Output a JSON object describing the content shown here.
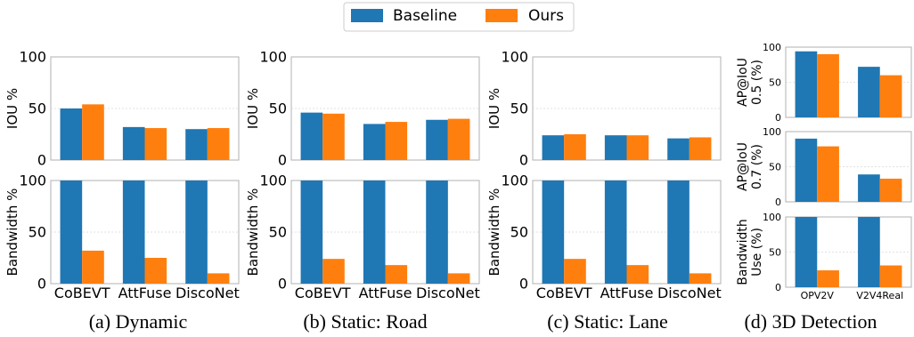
{
  "legend": {
    "placement": "top-center",
    "items": [
      {
        "label": "Baseline",
        "color": "#1f77b4"
      },
      {
        "label": "Ours",
        "color": "#ff7f0e"
      }
    ]
  },
  "captions": [
    "(a) Dynamic",
    "(b) Static: Road",
    "(c) Static: Lane",
    "(d) 3D Detection"
  ],
  "chart_data": [
    {
      "type": "bar",
      "panel": "a",
      "row": "top",
      "ylabel": "IOU %",
      "ylim": [
        0,
        100
      ],
      "yticks": [
        0,
        50,
        100
      ],
      "categories": [
        "CoBEVT",
        "AttFuse",
        "DiscoNet"
      ],
      "series": [
        {
          "name": "Baseline",
          "values": [
            50,
            32,
            30
          ]
        },
        {
          "name": "Ours",
          "values": [
            54,
            31,
            31
          ]
        }
      ]
    },
    {
      "type": "bar",
      "panel": "a",
      "row": "bottom",
      "ylabel": "Bandwidth %",
      "ylim": [
        0,
        100
      ],
      "yticks": [
        0,
        50,
        100
      ],
      "categories": [
        "CoBEVT",
        "AttFuse",
        "DiscoNet"
      ],
      "series": [
        {
          "name": "Baseline",
          "values": [
            100,
            100,
            100
          ]
        },
        {
          "name": "Ours",
          "values": [
            32,
            25,
            10
          ]
        }
      ]
    },
    {
      "type": "bar",
      "panel": "b",
      "row": "top",
      "ylabel": "IOU %",
      "ylim": [
        0,
        100
      ],
      "yticks": [
        0,
        50,
        100
      ],
      "categories": [
        "CoBEVT",
        "AttFuse",
        "DiscoNet"
      ],
      "series": [
        {
          "name": "Baseline",
          "values": [
            46,
            35,
            39
          ]
        },
        {
          "name": "Ours",
          "values": [
            45,
            37,
            40
          ]
        }
      ]
    },
    {
      "type": "bar",
      "panel": "b",
      "row": "bottom",
      "ylabel": "Bandwidth %",
      "ylim": [
        0,
        100
      ],
      "yticks": [
        0,
        50,
        100
      ],
      "categories": [
        "CoBEVT",
        "AttFuse",
        "DiscoNet"
      ],
      "series": [
        {
          "name": "Baseline",
          "values": [
            100,
            100,
            100
          ]
        },
        {
          "name": "Ours",
          "values": [
            24,
            18,
            10
          ]
        }
      ]
    },
    {
      "type": "bar",
      "panel": "c",
      "row": "top",
      "ylabel": "IOU %",
      "ylim": [
        0,
        100
      ],
      "yticks": [
        0,
        50,
        100
      ],
      "categories": [
        "CoBEVT",
        "AttFuse",
        "DiscoNet"
      ],
      "series": [
        {
          "name": "Baseline",
          "values": [
            24,
            24,
            21
          ]
        },
        {
          "name": "Ours",
          "values": [
            25,
            24,
            22
          ]
        }
      ]
    },
    {
      "type": "bar",
      "panel": "c",
      "row": "bottom",
      "ylabel": "Bandwidth %",
      "ylim": [
        0,
        100
      ],
      "yticks": [
        0,
        50,
        100
      ],
      "categories": [
        "CoBEVT",
        "AttFuse",
        "DiscoNet"
      ],
      "series": [
        {
          "name": "Baseline",
          "values": [
            100,
            100,
            100
          ]
        },
        {
          "name": "Ours",
          "values": [
            24,
            18,
            10
          ]
        }
      ]
    },
    {
      "type": "bar",
      "panel": "d",
      "row": "top",
      "ylabel": [
        "AP@IoU",
        "0.5 (%)"
      ],
      "ylim": [
        0,
        100
      ],
      "yticks": [
        0,
        50,
        100
      ],
      "categories": [
        "OPV2V",
        "V2V4Real"
      ],
      "series": [
        {
          "name": "Baseline",
          "values": [
            94,
            72
          ]
        },
        {
          "name": "Ours",
          "values": [
            90,
            60
          ]
        }
      ]
    },
    {
      "type": "bar",
      "panel": "d",
      "row": "middle",
      "ylabel": [
        "AP@IoU",
        "0.7 (%)"
      ],
      "ylim": [
        0,
        100
      ],
      "yticks": [
        0,
        50,
        100
      ],
      "categories": [
        "OPV2V",
        "V2V4Real"
      ],
      "series": [
        {
          "name": "Baseline",
          "values": [
            90,
            39
          ]
        },
        {
          "name": "Ours",
          "values": [
            79,
            33
          ]
        }
      ]
    },
    {
      "type": "bar",
      "panel": "d",
      "row": "bottom",
      "ylabel": [
        "Bandwidth",
        "Use (%)"
      ],
      "ylim": [
        0,
        100
      ],
      "yticks": [
        0,
        50,
        100
      ],
      "categories": [
        "OPV2V",
        "V2V4Real"
      ],
      "series": [
        {
          "name": "Baseline",
          "values": [
            100,
            100
          ]
        },
        {
          "name": "Ours",
          "values": [
            24,
            31
          ]
        }
      ]
    }
  ]
}
